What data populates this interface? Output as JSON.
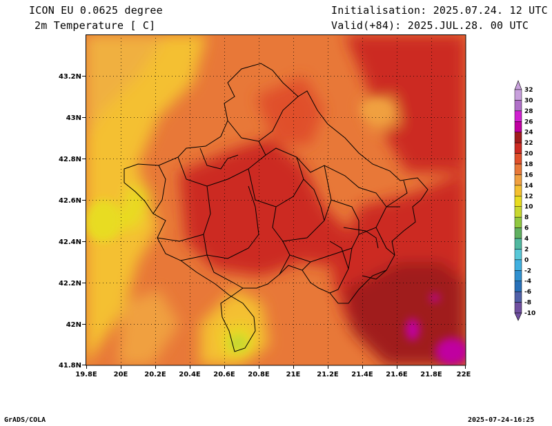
{
  "header": {
    "model_line": "ICON EU 0.0625 degree",
    "variable_line": "2m Temperature [ C]",
    "init_line": "Initialisation: 2025.07.24. 12 UTC",
    "valid_line": "Valid(+84): 2025.JUL.28. 00 UTC"
  },
  "axes": {
    "lat_labels": [
      "43.2N",
      "43N",
      "42.8N",
      "42.6N",
      "42.4N",
      "42.2N",
      "42N",
      "41.8N"
    ],
    "lon_labels": [
      "19.8E",
      "20E",
      "20.2E",
      "20.4E",
      "20.6E",
      "20.8E",
      "21E",
      "21.2E",
      "21.4E",
      "21.6E",
      "21.8E",
      "22E"
    ]
  },
  "colorbar": {
    "labels": [
      "32",
      "30",
      "28",
      "26",
      "24",
      "22",
      "20",
      "18",
      "16",
      "14",
      "12",
      "10",
      "8",
      "6",
      "4",
      "2",
      "0",
      "-2",
      "-4",
      "-6",
      "-8",
      "-10"
    ],
    "colors": [
      "#c8a0dc",
      "#b070c8",
      "#d020d0",
      "#c000a0",
      "#a01c1c",
      "#cc2a22",
      "#e0502a",
      "#e87838",
      "#f0a040",
      "#f4c030",
      "#e8dc20",
      "#c8d830",
      "#90c840",
      "#60b060",
      "#50b8a0",
      "#58c8d8",
      "#40b0e0",
      "#3090d0",
      "#2870b8",
      "#5060a8",
      "#7050a0"
    ]
  },
  "footer": {
    "left": "GrADS/COLA",
    "right": "2025-07-24-16:25"
  }
}
